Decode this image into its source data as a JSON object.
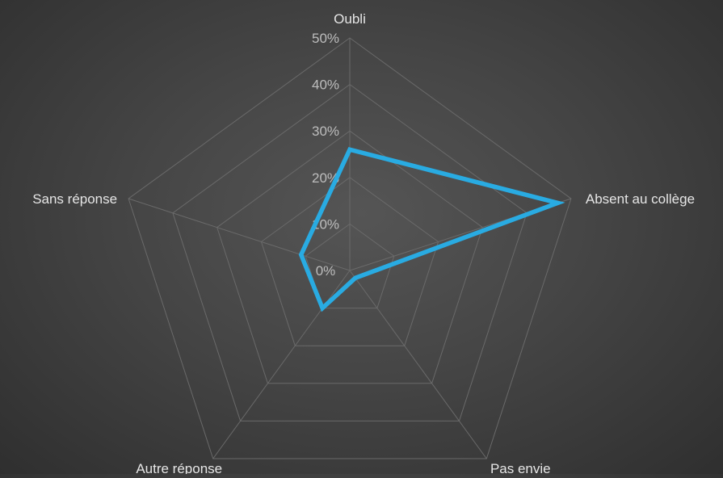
{
  "chart_data": {
    "type": "radar",
    "categories": [
      "Oubli",
      "Absent au collège",
      "Pas envie",
      "Autre réponse",
      "Sans réponse"
    ],
    "series": [
      {
        "values": [
          26,
          47,
          2,
          10,
          11
        ],
        "color": "#29abe2"
      }
    ],
    "rlim": [
      0,
      50
    ],
    "ticks": [
      "0%",
      "10%",
      "20%",
      "30%",
      "40%",
      "50%"
    ],
    "tick_values": [
      0,
      10,
      20,
      30,
      40,
      50
    ],
    "grid": true,
    "legend": "none"
  }
}
